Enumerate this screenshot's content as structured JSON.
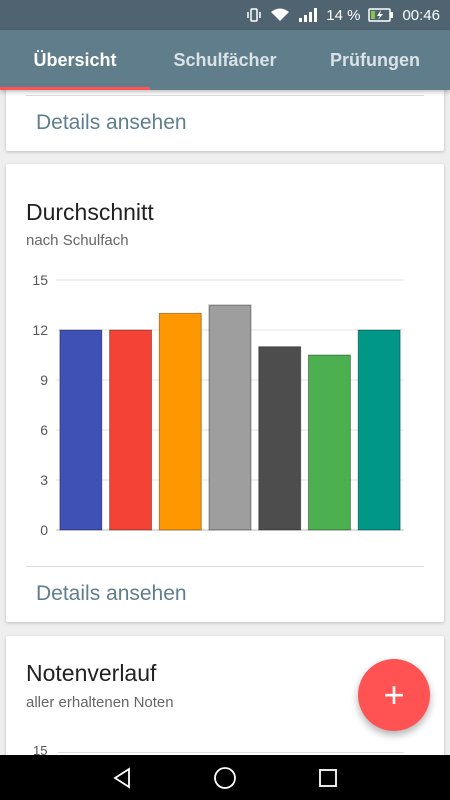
{
  "status_bar": {
    "battery_percent": "14 %",
    "time": "00:46",
    "icons": [
      "vibrate-icon",
      "wifi-icon",
      "signal-icon",
      "battery-charging-icon"
    ]
  },
  "tabs": [
    {
      "label": "Übersicht",
      "active": true
    },
    {
      "label": "Schulfächer",
      "active": false
    },
    {
      "label": "Prüfungen",
      "active": false
    }
  ],
  "card_top": {
    "details_label": "Details ansehen"
  },
  "card_average": {
    "title": "Durchschnitt",
    "subtitle": "nach Schulfach",
    "details_label": "Details ansehen"
  },
  "card_progress": {
    "title": "Notenverlauf",
    "subtitle": "aller erhaltenen Noten",
    "first_tick": "15"
  },
  "fab": {
    "label": "+"
  },
  "nav_icons": [
    "back-icon",
    "home-icon",
    "recents-icon"
  ],
  "colors": {
    "accent": "#FF5252",
    "primary": "#607D8B"
  },
  "chart_data": {
    "type": "bar",
    "title": "Durchschnitt",
    "subtitle": "nach Schulfach",
    "ylim": [
      0,
      15
    ],
    "yticks": [
      "0",
      "3",
      "6",
      "9",
      "12",
      "15"
    ],
    "values": [
      12,
      12,
      13,
      13.5,
      11,
      10.5,
      12
    ],
    "colors": [
      "#3F51B5",
      "#F44336",
      "#FF9800",
      "#9E9E9E",
      "#4D4D4D",
      "#4CAF50",
      "#009688"
    ],
    "grid": true
  }
}
